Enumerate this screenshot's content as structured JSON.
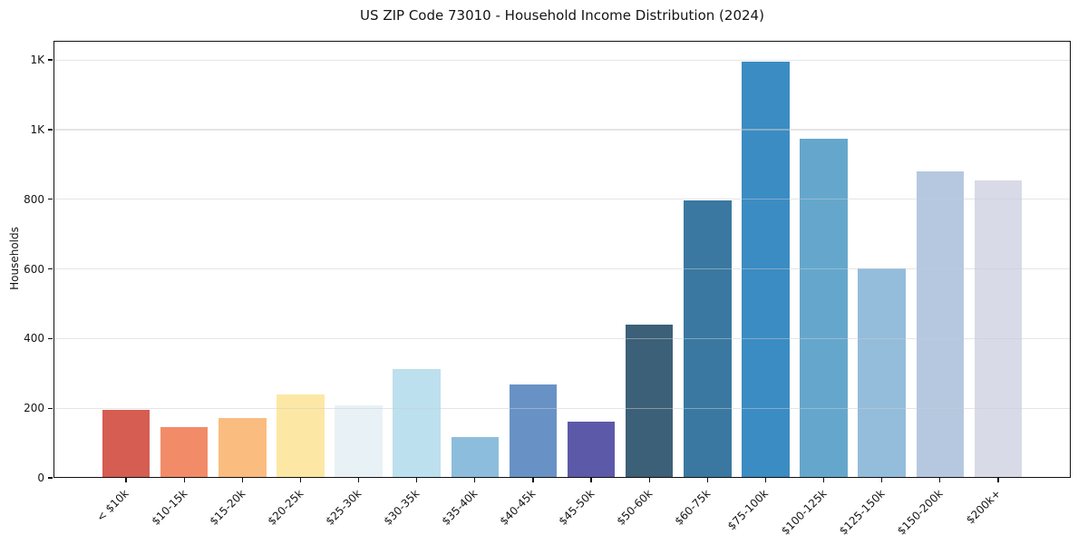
{
  "colors": {
    "background": "#ffffff",
    "spine": "#111111",
    "grid": "#cbcbd0",
    "text": "#151515"
  },
  "chart_data": {
    "type": "bar",
    "title": "US ZIP Code 73010 - Household Income Distribution (2024)",
    "xlabel": "",
    "ylabel": "Households",
    "categories": [
      "< $10k",
      "$10-15k",
      "$15-20k",
      "$20-25k",
      "$25-30k",
      "$30-35k",
      "$35-40k",
      "$40-45k",
      "$45-50k",
      "$50-60k",
      "$60-75k",
      "$75-100k",
      "$100-125k",
      "$125-150k",
      "$150-200k",
      "$200k+"
    ],
    "values": [
      195,
      145,
      172,
      240,
      208,
      312,
      117,
      269,
      162,
      440,
      798,
      1195,
      973,
      602,
      879,
      853
    ],
    "bar_colors": [
      "#d65d52",
      "#f28c68",
      "#fbbc80",
      "#fce8a4",
      "#e8f2f6",
      "#bde0ee",
      "#8dbddc",
      "#6892c5",
      "#5c59a9",
      "#3b6078",
      "#3a78a1",
      "#3a8cc3",
      "#65a7cc",
      "#94bcdb",
      "#b5c8e0",
      "#d8dae8"
    ],
    "ylim": [
      0,
      1255
    ],
    "yticks": [
      {
        "value": 0,
        "label": "0"
      },
      {
        "value": 200,
        "label": "200"
      },
      {
        "value": 400,
        "label": "400"
      },
      {
        "value": 600,
        "label": "600"
      },
      {
        "value": 800,
        "label": "800"
      },
      {
        "value": 1000,
        "label": "1K"
      },
      {
        "value": 1200,
        "label": "1K"
      }
    ],
    "grid": "horizontal-over-bars",
    "legend_position": "none",
    "x_tick_rotation_deg": 45,
    "bar_width_fraction": 0.82
  }
}
